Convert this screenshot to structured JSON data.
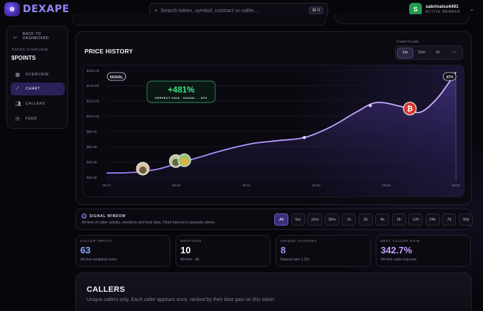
{
  "app": {
    "name": "DEXAPE",
    "logo_icon": "ape-face-icon"
  },
  "search": {
    "placeholder": "Search token, symbol, contract or caller...",
    "value": "",
    "shortcut": "⌘ K"
  },
  "user": {
    "initial": "S",
    "name": "sabrinalss4491",
    "role": "ACTIVE MEMBER",
    "avatar_color": "#1f9a4e"
  },
  "sidebar": {
    "back_label": "BACK TO DASHBOARD",
    "subtitle": "TOKEN OVERVIEW",
    "token": "$POINTS",
    "items": [
      {
        "label": "OVERVIEW",
        "icon": "grid-icon",
        "active": false
      },
      {
        "label": "CHART",
        "icon": "trend-line-icon",
        "active": true
      },
      {
        "label": "CALLERS",
        "icon": "users-icon",
        "active": false
      },
      {
        "label": "FEED",
        "icon": "broadcast-icon",
        "active": false
      }
    ]
  },
  "chart_card": {
    "title": "PRICE HISTORY",
    "timeframe_label": "TIMEFRAME",
    "timeframes": [
      {
        "label": "1m",
        "active": true
      },
      {
        "label": "15m",
        "active": false
      },
      {
        "label": "1h",
        "active": false
      },
      {
        "label": "1d",
        "active": false,
        "disabled": true
      }
    ]
  },
  "chart_data": {
    "type": "area",
    "x": [
      "08:47",
      "08:49",
      "08:51",
      "08:53",
      "08:55",
      "08:57"
    ],
    "y_ticks": [
      "$20.0K",
      "$40.0K",
      "$60.0K",
      "$80.0K",
      "$100.0K",
      "$120.0K",
      "$140.0K",
      "$160.0K"
    ],
    "ylim": [
      20000,
      160000
    ],
    "series": [
      {
        "points": [
          [
            0.0,
            25500
          ],
          [
            0.3,
            25800
          ],
          [
            0.55,
            27500
          ],
          [
            0.8,
            31000
          ],
          [
            1.0,
            36000
          ],
          [
            1.4,
            46000
          ],
          [
            1.8,
            56000
          ],
          [
            2.2,
            64000
          ],
          [
            2.6,
            68000
          ],
          [
            3.0,
            72000
          ],
          [
            3.4,
            86000
          ],
          [
            3.8,
            106000
          ],
          [
            4.1,
            118000
          ],
          [
            4.5,
            112000
          ],
          [
            4.75,
            105000
          ],
          [
            5.0,
            122000
          ],
          [
            5.2,
            145000
          ],
          [
            5.3,
            158000
          ]
        ],
        "color": "#b48cff"
      }
    ],
    "markers": [
      {
        "x": 0.55,
        "y": 27500,
        "kind": "caller-avatar"
      },
      {
        "x": 1.05,
        "y": 37500,
        "kind": "caller-avatar"
      },
      {
        "x": 1.18,
        "y": 38500,
        "kind": "caller-avatar"
      },
      {
        "x": 3.0,
        "y": 72000,
        "kind": "point"
      },
      {
        "x": 4.0,
        "y": 114000,
        "kind": "point"
      },
      {
        "x": 4.6,
        "y": 110000,
        "kind": "caller-avatar-red"
      }
    ],
    "badges": {
      "signal": "SIGNAL",
      "ath": "ATH"
    },
    "annotation": {
      "value": "+481%",
      "caption": "PERFECT GAIN · SIGNAL → ATH"
    },
    "grid": true,
    "line_color": "#b48cff",
    "accent_green": "#3ee087"
  },
  "signal_window": {
    "title": "SIGNAL WINDOW",
    "description": "All-time of caller activity, mentions and feed data. Chart interval is separate above.",
    "options": [
      {
        "label": "All",
        "active": true
      },
      {
        "label": "5m",
        "active": false
      },
      {
        "label": "15m",
        "active": false
      },
      {
        "label": "30m",
        "active": false
      },
      {
        "label": "1h",
        "active": false
      },
      {
        "label": "2h",
        "active": false
      },
      {
        "label": "4h",
        "active": false
      },
      {
        "label": "6h",
        "active": false
      },
      {
        "label": "12h",
        "active": false
      },
      {
        "label": "24h",
        "active": false
      },
      {
        "label": "7d",
        "active": false
      },
      {
        "label": "30d",
        "active": false
      }
    ]
  },
  "stats": [
    {
      "label": "CALLER IMPACT",
      "value": "63",
      "sub": "All-time weighted score",
      "tone": "blue"
    },
    {
      "label": "MENTIONS",
      "value": "10",
      "sub": "All-time · All",
      "tone": "white"
    },
    {
      "label": "UNIQUE AUTHORS",
      "value": "8",
      "sub": "Repeat ratio 1.25x",
      "tone": "violet"
    },
    {
      "label": "BEST CALLER GAIN",
      "value": "342.7%",
      "sub": "All-time caller outcome",
      "tone": "grad"
    }
  ],
  "callers": {
    "title": "CALLERS",
    "description": "Unique callers only. Each caller appears once, ranked by their best gain on this token."
  }
}
